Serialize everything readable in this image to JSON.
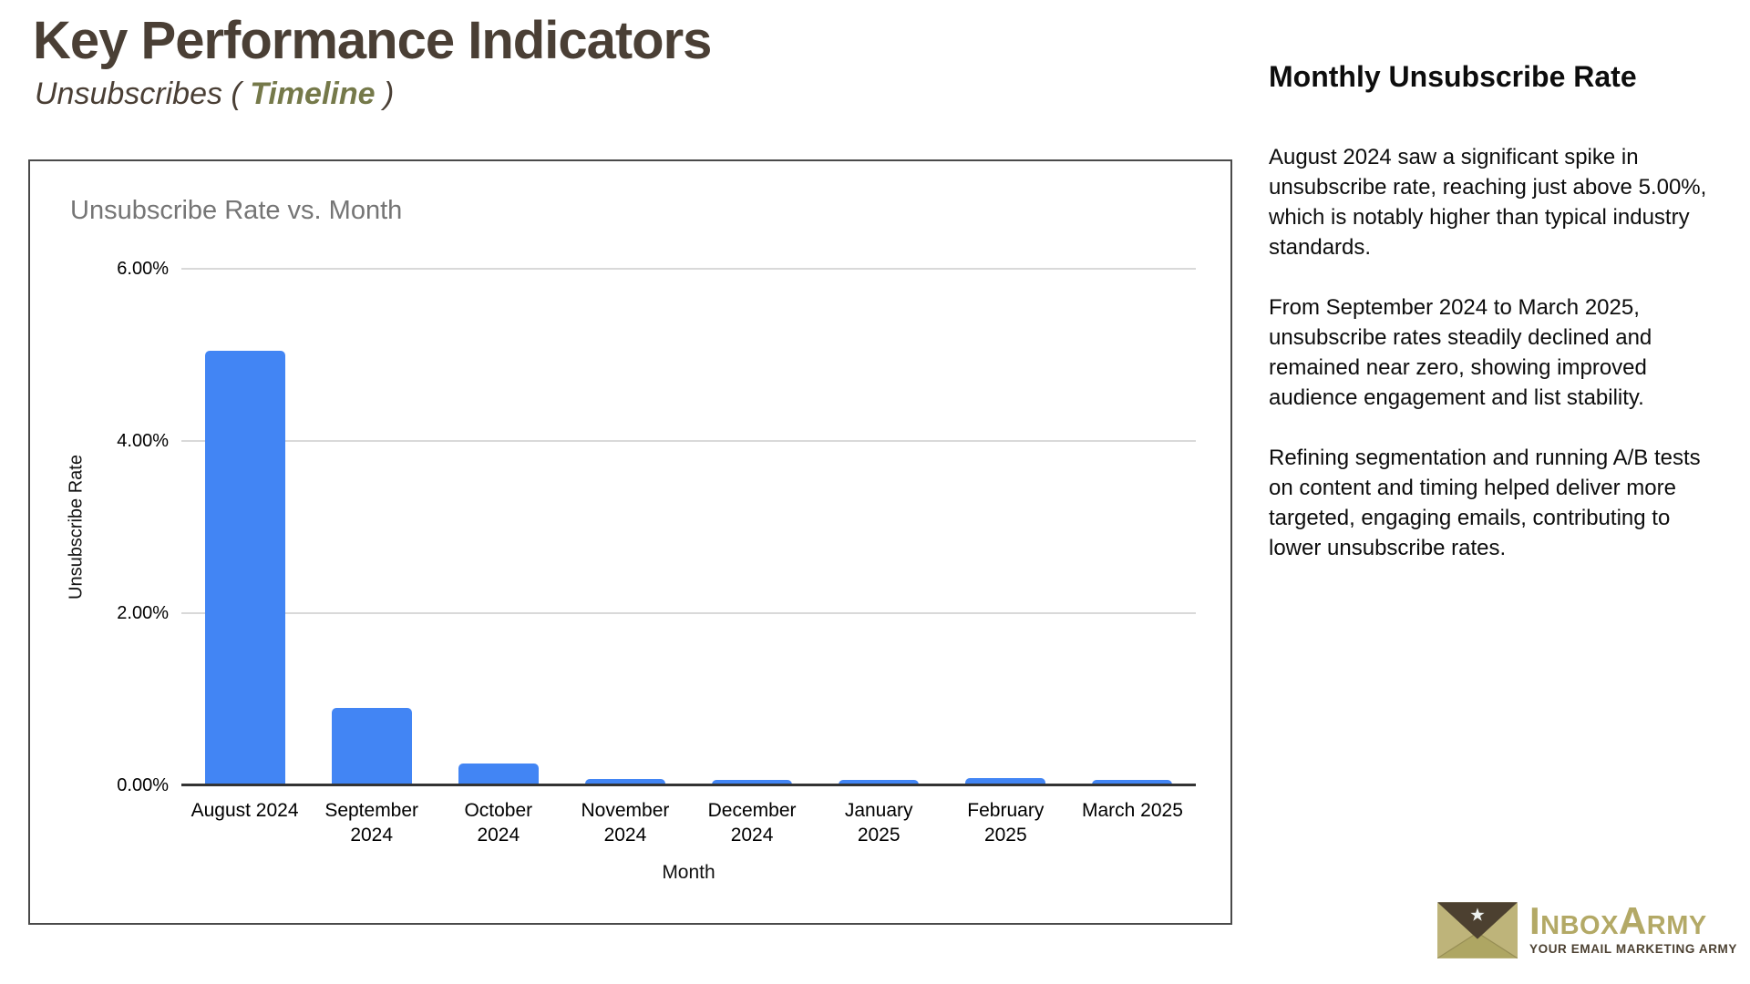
{
  "page": {
    "title": "Key Performance Indicators",
    "subtitle_prefix": "Unsubscribes ( ",
    "subtitle_highlight": "Timeline",
    "subtitle_suffix": " )"
  },
  "colors": {
    "title_brown": "#4a3f35",
    "subtitle_olive": "#75794a",
    "bar_blue": "#4285f4",
    "gridline_gray": "#d9d9d9",
    "axis_dark": "#333333",
    "chart_title_gray": "#757575",
    "logo_khaki": "#b3a966",
    "logo_brown": "#4c4132"
  },
  "chart_data": {
    "type": "bar",
    "title": "Unsubscribe Rate vs. Month",
    "xlabel": "Month",
    "ylabel": "Unsubscribe Rate",
    "ylim": [
      0,
      6
    ],
    "ytick_step": 2,
    "ytick_labels": [
      "0.00%",
      "2.00%",
      "4.00%",
      "6.00%"
    ],
    "grid": true,
    "legend": "none",
    "bar_color": "#4285f4",
    "categories": [
      "August 2024",
      "September 2024",
      "October 2024",
      "November 2024",
      "December 2024",
      "January 2025",
      "February 2025",
      "March 2025"
    ],
    "category_lines": [
      [
        "August 2024"
      ],
      [
        "September",
        "2024"
      ],
      [
        "October",
        "2024"
      ],
      [
        "November",
        "2024"
      ],
      [
        "December",
        "2024"
      ],
      [
        "January",
        "2025"
      ],
      [
        "February",
        "2025"
      ],
      [
        "March 2025"
      ]
    ],
    "values": [
      5.05,
      0.9,
      0.25,
      0.07,
      0.06,
      0.06,
      0.08,
      0.06
    ]
  },
  "panel": {
    "heading": "Monthly Unsubscribe Rate",
    "paragraphs": [
      "August 2024 saw a significant spike in unsubscribe rate, reaching just above 5.00%, which is notably higher than typical industry standards.",
      "From September 2024 to March 2025, unsubscribe rates steadily declined and remained near zero, showing improved audience engagement and list stability.",
      "Refining segmentation and running A/B tests on content and timing helped deliver more targeted, engaging emails, contributing to lower unsubscribe rates."
    ]
  },
  "logo": {
    "wordmark": "InboxArmy",
    "tagline": "YOUR EMAIL MARKETING ARMY"
  }
}
